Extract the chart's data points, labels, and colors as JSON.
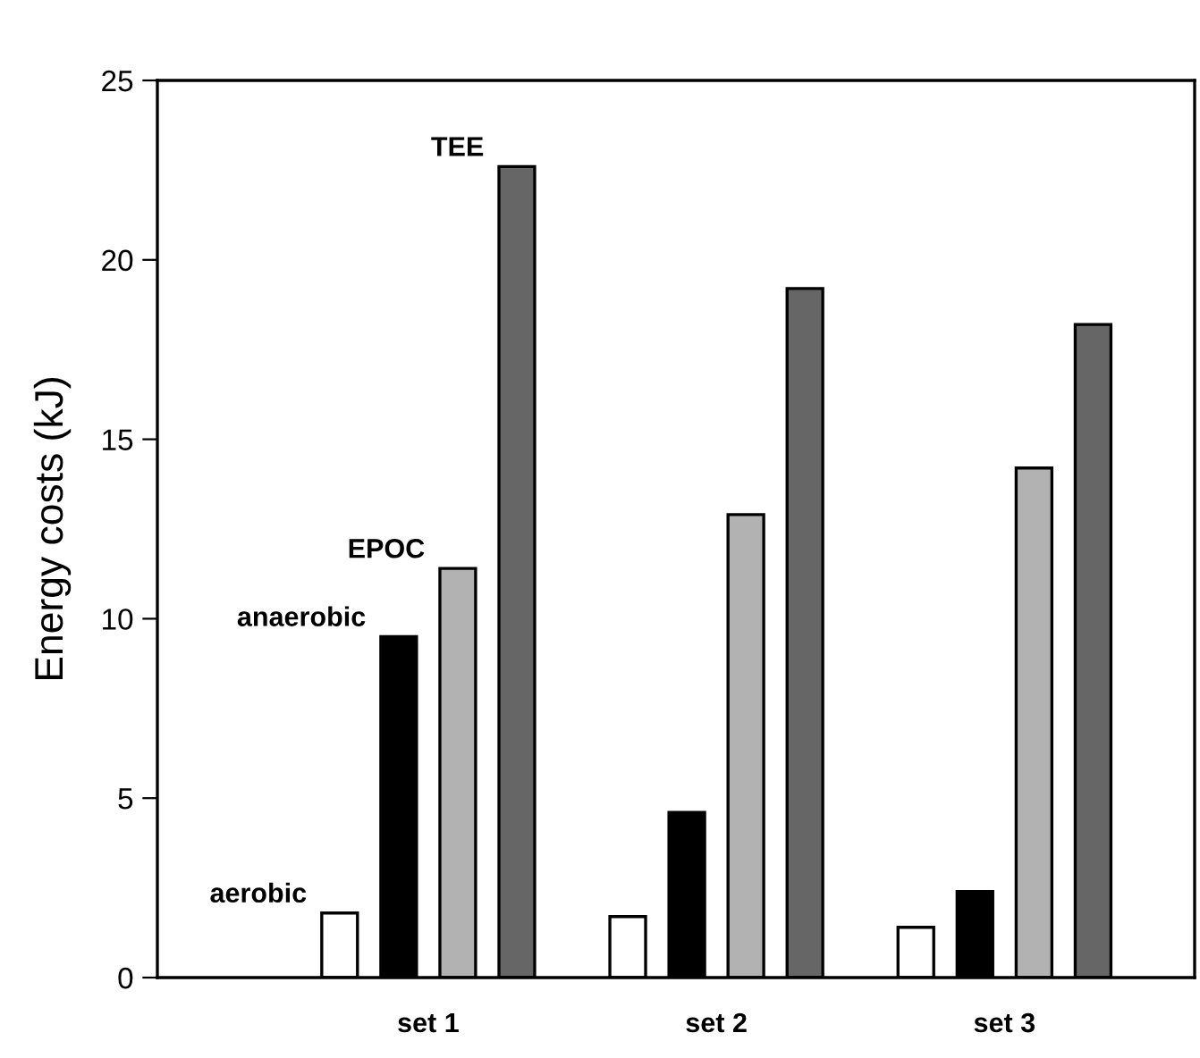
{
  "chart_data": {
    "type": "bar",
    "ylabel": "Energy costs (kJ)",
    "categories": [
      "set 1",
      "set 2",
      "set 3"
    ],
    "series": [
      {
        "name": "aerobic",
        "color": "#ffffff",
        "values": [
          1.8,
          1.7,
          1.4
        ]
      },
      {
        "name": "anaerobic",
        "color": "#000000",
        "values": [
          9.5,
          4.6,
          2.4
        ]
      },
      {
        "name": "EPOC",
        "color": "#b2b2b2",
        "values": [
          11.4,
          12.9,
          14.2
        ]
      },
      {
        "name": "TEE",
        "color": "#666666",
        "values": [
          22.6,
          19.2,
          18.2
        ]
      }
    ],
    "ylim": [
      0,
      25
    ],
    "yticks": [
      0,
      5,
      10,
      15,
      20,
      25
    ],
    "grid": false,
    "legend": false
  }
}
